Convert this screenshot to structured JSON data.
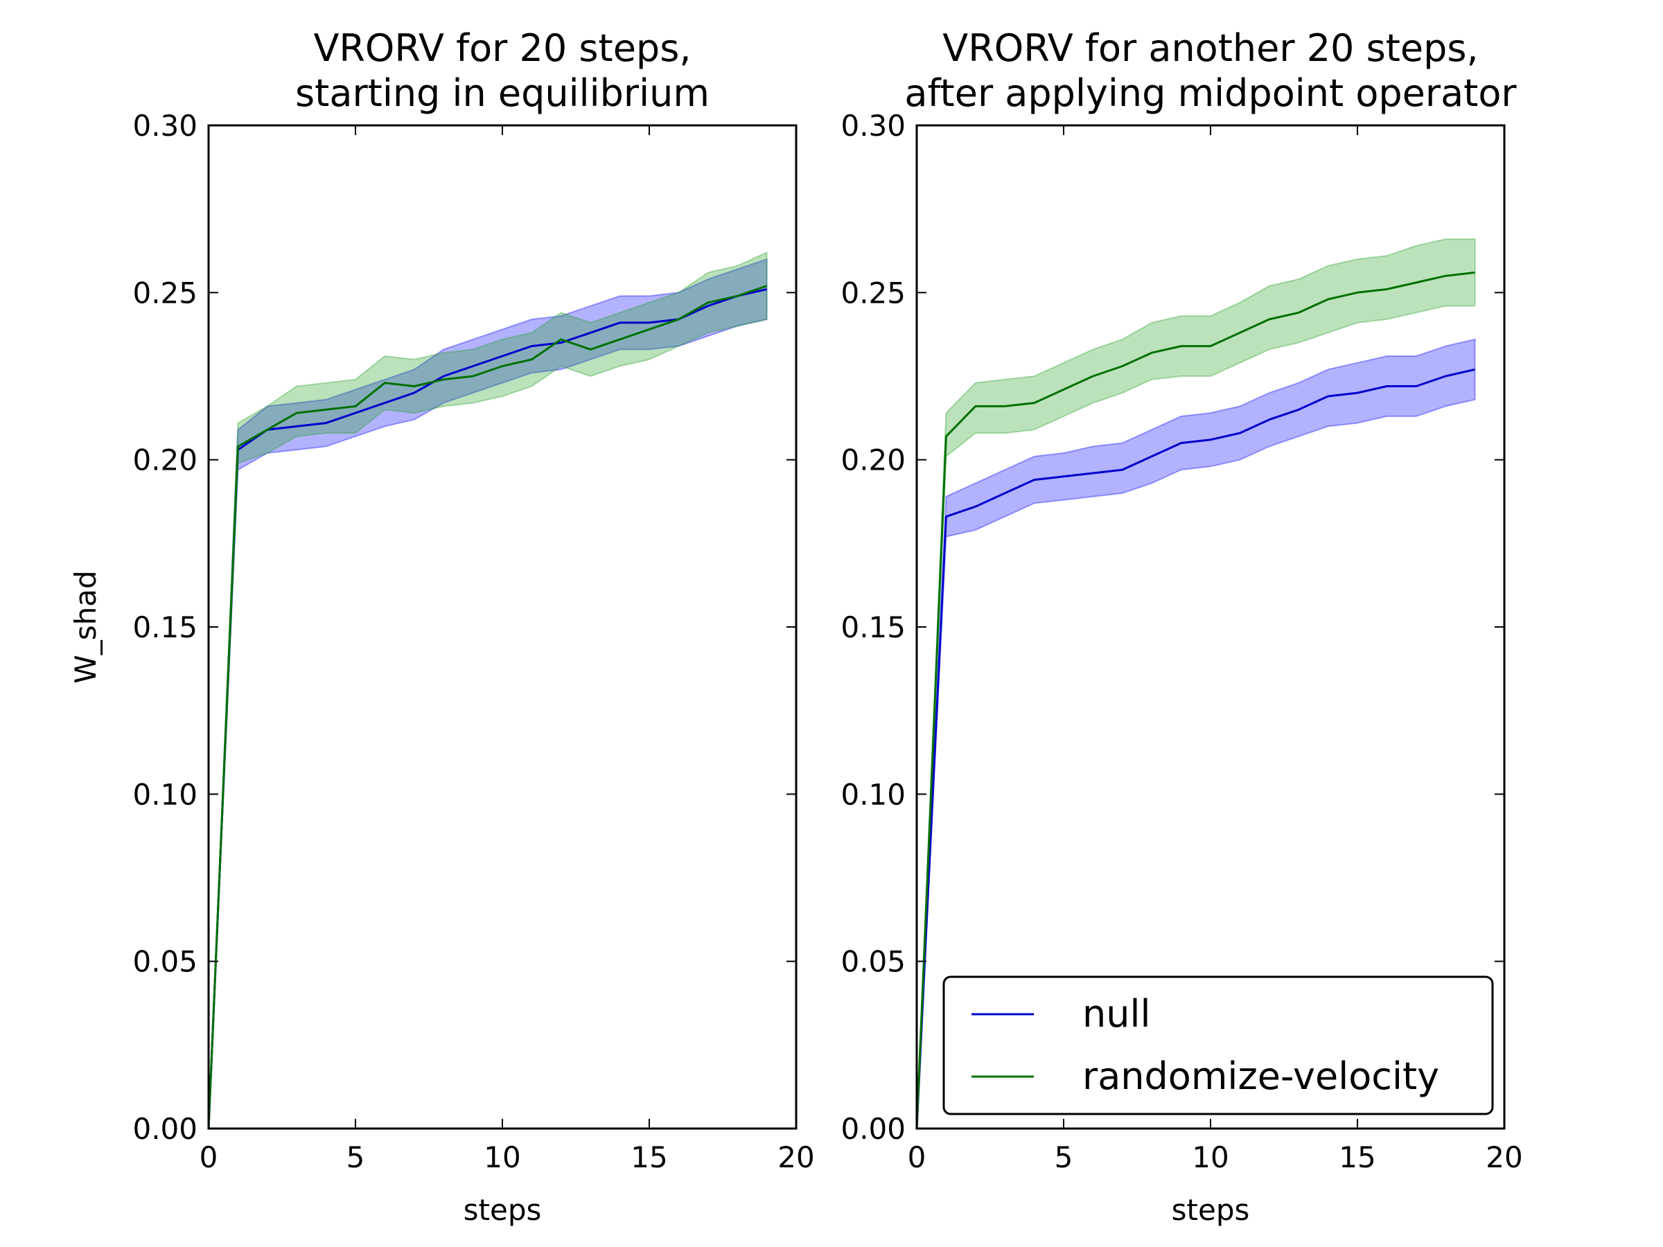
{
  "chart_data": [
    {
      "type": "line",
      "title": "VRORV for 20 steps,\nstarting in equilibrium",
      "xlabel": "steps",
      "ylabel": "W_shad",
      "xlim": [
        0,
        20
      ],
      "ylim": [
        0,
        0.3
      ],
      "xticks": [
        "0",
        "5",
        "10",
        "15",
        "20"
      ],
      "yticks": [
        "0.00",
        "0.05",
        "0.10",
        "0.15",
        "0.20",
        "0.25",
        "0.30"
      ],
      "grid": false,
      "x": [
        0,
        1,
        2,
        3,
        4,
        5,
        6,
        7,
        8,
        9,
        10,
        11,
        12,
        13,
        14,
        15,
        16,
        17,
        18,
        19
      ],
      "series": [
        {
          "name": "null",
          "color": "#0000cc",
          "band_color": "#0000ff",
          "values": [
            0.0,
            0.203,
            0.209,
            0.21,
            0.211,
            0.214,
            0.217,
            0.22,
            0.225,
            0.228,
            0.231,
            0.234,
            0.235,
            0.238,
            0.241,
            0.241,
            0.242,
            0.246,
            0.249,
            0.251
          ],
          "lower": [
            0.0,
            0.197,
            0.202,
            0.203,
            0.204,
            0.207,
            0.21,
            0.212,
            0.217,
            0.22,
            0.223,
            0.226,
            0.227,
            0.23,
            0.233,
            0.233,
            0.234,
            0.237,
            0.24,
            0.242
          ],
          "upper": [
            0.0,
            0.209,
            0.216,
            0.217,
            0.218,
            0.221,
            0.224,
            0.227,
            0.233,
            0.236,
            0.239,
            0.242,
            0.243,
            0.246,
            0.249,
            0.249,
            0.25,
            0.254,
            0.257,
            0.26
          ]
        },
        {
          "name": "randomize-velocity",
          "color": "#007000",
          "band_color": "#22a022",
          "values": [
            0.0,
            0.204,
            0.209,
            0.214,
            0.215,
            0.216,
            0.223,
            0.222,
            0.224,
            0.225,
            0.228,
            0.23,
            0.236,
            0.233,
            0.236,
            0.239,
            0.242,
            0.247,
            0.249,
            0.252
          ],
          "lower": [
            0.0,
            0.199,
            0.202,
            0.207,
            0.208,
            0.208,
            0.215,
            0.214,
            0.216,
            0.217,
            0.219,
            0.222,
            0.228,
            0.225,
            0.228,
            0.23,
            0.234,
            0.238,
            0.24,
            0.242
          ],
          "upper": [
            0.0,
            0.211,
            0.216,
            0.222,
            0.223,
            0.224,
            0.231,
            0.23,
            0.232,
            0.233,
            0.236,
            0.238,
            0.244,
            0.241,
            0.244,
            0.247,
            0.25,
            0.256,
            0.258,
            0.262
          ]
        }
      ]
    },
    {
      "type": "line",
      "title": "VRORV for another 20 steps,\nafter applying midpoint operator",
      "xlabel": "steps",
      "ylabel": "",
      "xlim": [
        0,
        20
      ],
      "ylim": [
        0,
        0.3
      ],
      "xticks": [
        "0",
        "5",
        "10",
        "15",
        "20"
      ],
      "yticks": [
        "0.00",
        "0.05",
        "0.10",
        "0.15",
        "0.20",
        "0.25",
        "0.30"
      ],
      "grid": false,
      "legend": "lower-right",
      "x": [
        0,
        1,
        2,
        3,
        4,
        5,
        6,
        7,
        8,
        9,
        10,
        11,
        12,
        13,
        14,
        15,
        16,
        17,
        18,
        19
      ],
      "series": [
        {
          "name": "null",
          "color": "#0000cc",
          "band_color": "#0000ff",
          "values": [
            0.0,
            0.183,
            0.186,
            0.19,
            0.194,
            0.195,
            0.196,
            0.197,
            0.201,
            0.205,
            0.206,
            0.208,
            0.212,
            0.215,
            0.219,
            0.22,
            0.222,
            0.222,
            0.225,
            0.227
          ],
          "lower": [
            0.0,
            0.177,
            0.179,
            0.183,
            0.187,
            0.188,
            0.189,
            0.19,
            0.193,
            0.197,
            0.198,
            0.2,
            0.204,
            0.207,
            0.21,
            0.211,
            0.213,
            0.213,
            0.216,
            0.218
          ],
          "upper": [
            0.0,
            0.189,
            0.193,
            0.197,
            0.201,
            0.202,
            0.204,
            0.205,
            0.209,
            0.213,
            0.214,
            0.216,
            0.22,
            0.223,
            0.227,
            0.229,
            0.231,
            0.231,
            0.234,
            0.236
          ]
        },
        {
          "name": "randomize-velocity",
          "color": "#007000",
          "band_color": "#22a022",
          "values": [
            0.0,
            0.207,
            0.216,
            0.216,
            0.217,
            0.221,
            0.225,
            0.228,
            0.232,
            0.234,
            0.234,
            0.238,
            0.242,
            0.244,
            0.248,
            0.25,
            0.251,
            0.253,
            0.255,
            0.256
          ],
          "lower": [
            0.0,
            0.201,
            0.208,
            0.208,
            0.209,
            0.213,
            0.217,
            0.22,
            0.224,
            0.225,
            0.225,
            0.229,
            0.233,
            0.235,
            0.238,
            0.241,
            0.242,
            0.244,
            0.246,
            0.246
          ],
          "upper": [
            0.0,
            0.214,
            0.223,
            0.224,
            0.225,
            0.229,
            0.233,
            0.236,
            0.241,
            0.243,
            0.243,
            0.247,
            0.252,
            0.254,
            0.258,
            0.26,
            0.261,
            0.264,
            0.266,
            0.266
          ]
        }
      ]
    }
  ]
}
